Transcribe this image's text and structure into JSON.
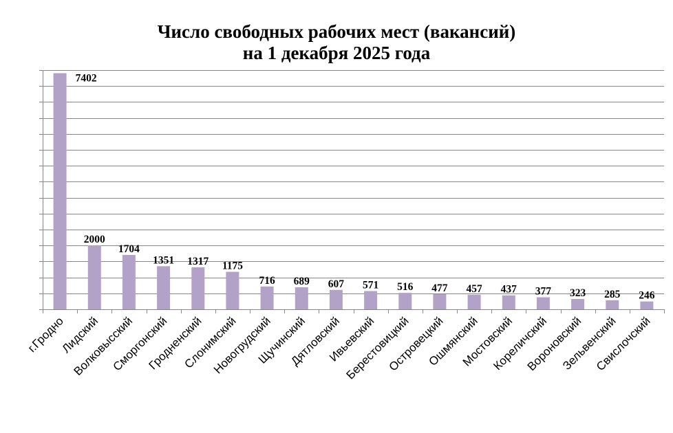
{
  "chart_data": {
    "type": "bar",
    "title": [
      "Число свободных рабочих мест (вакансий)",
      "на 1 декабря 2025 года"
    ],
    "categories": [
      "г.Гродно",
      "Лидский",
      "Волковысский",
      "Сморгонский",
      "Гродненский",
      "Слонимский",
      "Новогрудский",
      "Щучинский",
      "Дятловский",
      "Ивьевский",
      "Берестовицкий",
      "Островецкий",
      "Ошмянский",
      "Мостовский",
      "Кореличский",
      "Вороновский",
      "Зельвенский",
      "Свислочский"
    ],
    "values": [
      7402,
      2000,
      1704,
      1351,
      1317,
      1175,
      716,
      689,
      607,
      571,
      516,
      477,
      457,
      437,
      377,
      323,
      285,
      246
    ],
    "ylim": [
      0,
      7500
    ],
    "grid": true,
    "y_tick_labels_shown": false,
    "data_labels": true,
    "colors": {
      "bar": "#B3A2C7",
      "grid": "#868686",
      "axis": "#868686"
    }
  }
}
